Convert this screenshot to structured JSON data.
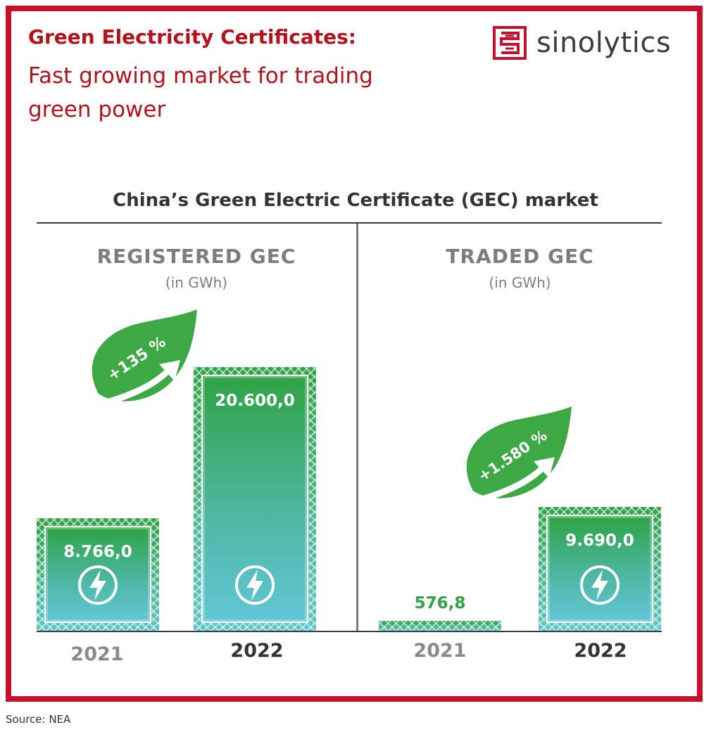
{
  "header": {
    "title_line1": "Green Electricity Certificates:",
    "title_line2": "Fast growing market for trading green power",
    "logo_text": "sinolytics",
    "brand_color": "#c8102e"
  },
  "chart_title": "China’s Green Electric Certificate (GEC) market",
  "source": "Source: NEA",
  "chart_data": [
    {
      "type": "bar",
      "title": "REGISTERED GEC",
      "unit": "(in GWh)",
      "categories": [
        "2021",
        "2022"
      ],
      "values": [
        8766.0,
        20600.0
      ],
      "value_labels": [
        "8.766,0",
        "20.600,0"
      ],
      "growth_label": "+135 %",
      "bar_color": "#2fa345"
    },
    {
      "type": "bar",
      "title": "TRADED GEC",
      "unit": "(in GWh)",
      "categories": [
        "2021",
        "2022"
      ],
      "values": [
        576.8,
        9690.0
      ],
      "value_labels": [
        "576,8",
        "9.690,0"
      ],
      "growth_label": "+1.580 %",
      "bar_color": "#2fa345"
    }
  ]
}
